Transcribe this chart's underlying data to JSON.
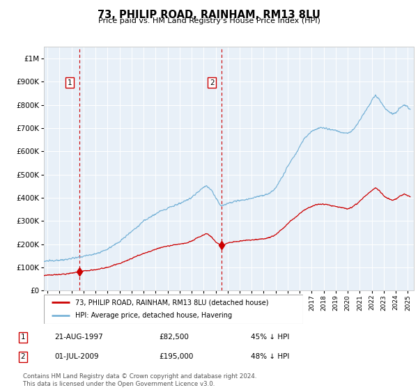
{
  "title": "73, PHILIP ROAD, RAINHAM, RM13 8LU",
  "subtitle": "Price paid vs. HM Land Registry's House Price Index (HPI)",
  "plot_bg_color": "#e8f0f8",
  "red_line_color": "#cc0000",
  "blue_line_color": "#7ab4d8",
  "marker_color": "#cc0000",
  "purchase1_date": 1997.644,
  "purchase1_price": 82500,
  "purchase2_date": 2009.496,
  "purchase2_price": 195000,
  "ylim_max": 1050000,
  "xlim_min": 1994.7,
  "xlim_max": 2025.5,
  "legend_label_red": "73, PHILIP ROAD, RAINHAM, RM13 8LU (detached house)",
  "legend_label_blue": "HPI: Average price, detached house, Havering",
  "note1_date": "21-AUG-1997",
  "note1_price": "£82,500",
  "note1_hpi": "45% ↓ HPI",
  "note2_date": "01-JUL-2009",
  "note2_price": "£195,000",
  "note2_hpi": "48% ↓ HPI",
  "footer": "Contains HM Land Registry data © Crown copyright and database right 2024.\nThis data is licensed under the Open Government Licence v3.0.",
  "blue_keypoints": [
    [
      1994.7,
      125000
    ],
    [
      1995.0,
      128000
    ],
    [
      1995.5,
      128000
    ],
    [
      1996.0,
      130000
    ],
    [
      1997.0,
      138000
    ],
    [
      1997.5,
      142000
    ],
    [
      1998.0,
      148000
    ],
    [
      1999.0,
      158000
    ],
    [
      2000.0,
      178000
    ],
    [
      2001.0,
      210000
    ],
    [
      2002.0,
      255000
    ],
    [
      2002.5,
      275000
    ],
    [
      2003.0,
      300000
    ],
    [
      2003.5,
      315000
    ],
    [
      2004.0,
      330000
    ],
    [
      2004.5,
      345000
    ],
    [
      2005.0,
      355000
    ],
    [
      2005.5,
      365000
    ],
    [
      2006.0,
      375000
    ],
    [
      2006.5,
      385000
    ],
    [
      2007.0,
      400000
    ],
    [
      2007.5,
      425000
    ],
    [
      2008.0,
      445000
    ],
    [
      2008.3,
      450000
    ],
    [
      2008.7,
      430000
    ],
    [
      2009.0,
      400000
    ],
    [
      2009.3,
      375000
    ],
    [
      2009.5,
      365000
    ],
    [
      2009.7,
      370000
    ],
    [
      2010.0,
      375000
    ],
    [
      2010.5,
      385000
    ],
    [
      2011.0,
      388000
    ],
    [
      2011.5,
      392000
    ],
    [
      2012.0,
      398000
    ],
    [
      2012.5,
      405000
    ],
    [
      2013.0,
      410000
    ],
    [
      2013.5,
      420000
    ],
    [
      2014.0,
      440000
    ],
    [
      2014.3,
      470000
    ],
    [
      2014.7,
      505000
    ],
    [
      2015.0,
      535000
    ],
    [
      2015.3,
      560000
    ],
    [
      2015.7,
      590000
    ],
    [
      2016.0,
      620000
    ],
    [
      2016.3,
      650000
    ],
    [
      2016.7,
      670000
    ],
    [
      2017.0,
      685000
    ],
    [
      2017.3,
      695000
    ],
    [
      2017.7,
      700000
    ],
    [
      2018.0,
      700000
    ],
    [
      2018.5,
      695000
    ],
    [
      2019.0,
      688000
    ],
    [
      2019.5,
      682000
    ],
    [
      2020.0,
      678000
    ],
    [
      2020.3,
      685000
    ],
    [
      2020.7,
      710000
    ],
    [
      2021.0,
      735000
    ],
    [
      2021.3,
      760000
    ],
    [
      2021.7,
      790000
    ],
    [
      2022.0,
      820000
    ],
    [
      2022.3,
      840000
    ],
    [
      2022.6,
      825000
    ],
    [
      2022.9,
      800000
    ],
    [
      2023.0,
      790000
    ],
    [
      2023.3,
      775000
    ],
    [
      2023.7,
      760000
    ],
    [
      2024.0,
      765000
    ],
    [
      2024.3,
      785000
    ],
    [
      2024.7,
      800000
    ],
    [
      2025.0,
      790000
    ],
    [
      2025.2,
      780000
    ]
  ],
  "red_keypoints": [
    [
      1994.7,
      65000
    ],
    [
      1995.0,
      67000
    ],
    [
      1995.5,
      67500
    ],
    [
      1996.0,
      69000
    ],
    [
      1997.0,
      75000
    ],
    [
      1997.5,
      79000
    ],
    [
      1997.644,
      82500
    ],
    [
      1998.0,
      84000
    ],
    [
      1999.0,
      90000
    ],
    [
      2000.0,
      100000
    ],
    [
      2001.0,
      116000
    ],
    [
      2002.0,
      138000
    ],
    [
      2002.5,
      150000
    ],
    [
      2003.0,
      160000
    ],
    [
      2003.5,
      168000
    ],
    [
      2004.0,
      178000
    ],
    [
      2004.5,
      186000
    ],
    [
      2005.0,
      192000
    ],
    [
      2005.5,
      196000
    ],
    [
      2006.0,
      200000
    ],
    [
      2006.5,
      204000
    ],
    [
      2007.0,
      213000
    ],
    [
      2007.5,
      228000
    ],
    [
      2008.0,
      240000
    ],
    [
      2008.3,
      246000
    ],
    [
      2008.7,
      228000
    ],
    [
      2009.0,
      210000
    ],
    [
      2009.3,
      200000
    ],
    [
      2009.496,
      195000
    ],
    [
      2009.7,
      198000
    ],
    [
      2010.0,
      205000
    ],
    [
      2010.5,
      210000
    ],
    [
      2011.0,
      213000
    ],
    [
      2011.5,
      216000
    ],
    [
      2012.0,
      218000
    ],
    [
      2012.5,
      220000
    ],
    [
      2013.0,
      223000
    ],
    [
      2013.5,
      228000
    ],
    [
      2014.0,
      240000
    ],
    [
      2014.3,
      255000
    ],
    [
      2014.7,
      272000
    ],
    [
      2015.0,
      288000
    ],
    [
      2015.3,
      302000
    ],
    [
      2015.7,
      318000
    ],
    [
      2016.0,
      332000
    ],
    [
      2016.3,
      345000
    ],
    [
      2016.7,
      355000
    ],
    [
      2017.0,
      362000
    ],
    [
      2017.3,
      368000
    ],
    [
      2017.7,
      372000
    ],
    [
      2018.0,
      372000
    ],
    [
      2018.5,
      368000
    ],
    [
      2019.0,
      362000
    ],
    [
      2019.5,
      357000
    ],
    [
      2020.0,
      352000
    ],
    [
      2020.3,
      358000
    ],
    [
      2020.7,
      372000
    ],
    [
      2021.0,
      385000
    ],
    [
      2021.3,
      400000
    ],
    [
      2021.7,
      418000
    ],
    [
      2022.0,
      430000
    ],
    [
      2022.3,
      443000
    ],
    [
      2022.6,
      432000
    ],
    [
      2022.9,
      415000
    ],
    [
      2023.0,
      408000
    ],
    [
      2023.3,
      398000
    ],
    [
      2023.7,
      390000
    ],
    [
      2024.0,
      393000
    ],
    [
      2024.3,
      405000
    ],
    [
      2024.7,
      415000
    ],
    [
      2025.0,
      408000
    ],
    [
      2025.2,
      405000
    ]
  ]
}
